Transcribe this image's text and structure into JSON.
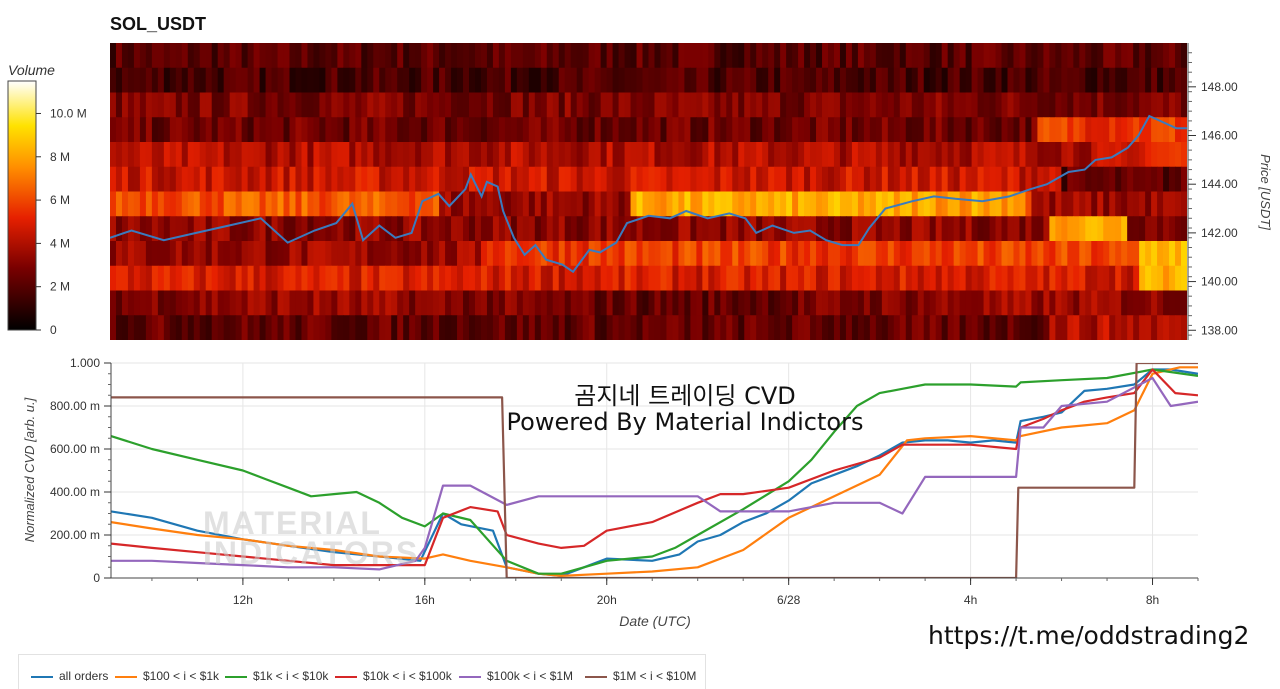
{
  "window_title": "SOL_USDT",
  "overlay": {
    "line1": "곰지네 트레이딩 CVD",
    "line2": "Powered By Material Indictors"
  },
  "link_text": "https://t.me/oddstrading2",
  "watermark": {
    "line1": "MATERIAL",
    "line2": "INDICATORS"
  },
  "colors": {
    "all_orders": "#1f77b4",
    "t100_1k": "#ff7f0e",
    "t1k_10k": "#2ca02c",
    "t10k_100k": "#d62728",
    "t100k_1m": "#9467bd",
    "t1m_10m": "#8c564b",
    "price_line": "#3a7bbf"
  },
  "chart_data": [
    {
      "type": "heatmap",
      "title": "SOL_USDT",
      "ylabel": "Price [USDT]",
      "colorbar_label": "Volume",
      "colorbar_ticks": [
        "0",
        "2 M",
        "4 M",
        "6 M",
        "8 M",
        "10.0 M"
      ],
      "colorbar_range": [
        0,
        11.5
      ],
      "y_ticks": [
        "138.00",
        "140.00",
        "142.00",
        "144.00",
        "146.00",
        "148.00"
      ],
      "ylim": [
        137.6,
        149.8
      ],
      "price_line": [
        [
          0,
          141.8
        ],
        [
          0.02,
          142.1
        ],
        [
          0.05,
          141.7
        ],
        [
          0.08,
          142.0
        ],
        [
          0.11,
          142.3
        ],
        [
          0.14,
          142.6
        ],
        [
          0.165,
          141.6
        ],
        [
          0.19,
          142.1
        ],
        [
          0.21,
          142.4
        ],
        [
          0.225,
          143.2
        ],
        [
          0.235,
          141.7
        ],
        [
          0.25,
          142.3
        ],
        [
          0.265,
          141.8
        ],
        [
          0.28,
          142.0
        ],
        [
          0.29,
          143.3
        ],
        [
          0.305,
          143.6
        ],
        [
          0.315,
          143.1
        ],
        [
          0.33,
          143.8
        ],
        [
          0.335,
          144.4
        ],
        [
          0.345,
          143.5
        ],
        [
          0.35,
          144.1
        ],
        [
          0.36,
          143.9
        ],
        [
          0.365,
          142.9
        ],
        [
          0.375,
          141.8
        ],
        [
          0.385,
          141.1
        ],
        [
          0.395,
          141.5
        ],
        [
          0.405,
          140.9
        ],
        [
          0.42,
          140.7
        ],
        [
          0.43,
          140.4
        ],
        [
          0.445,
          141.3
        ],
        [
          0.455,
          141.2
        ],
        [
          0.47,
          141.6
        ],
        [
          0.48,
          142.4
        ],
        [
          0.5,
          142.7
        ],
        [
          0.52,
          142.6
        ],
        [
          0.535,
          142.9
        ],
        [
          0.555,
          142.6
        ],
        [
          0.575,
          142.8
        ],
        [
          0.59,
          142.6
        ],
        [
          0.6,
          142.0
        ],
        [
          0.615,
          142.3
        ],
        [
          0.635,
          142.0
        ],
        [
          0.65,
          142.1
        ],
        [
          0.665,
          141.7
        ],
        [
          0.68,
          141.5
        ],
        [
          0.695,
          141.5
        ],
        [
          0.705,
          142.2
        ],
        [
          0.72,
          143.0
        ],
        [
          0.745,
          143.3
        ],
        [
          0.765,
          143.5
        ],
        [
          0.785,
          143.4
        ],
        [
          0.81,
          143.3
        ],
        [
          0.835,
          143.5
        ],
        [
          0.855,
          143.8
        ],
        [
          0.87,
          144.0
        ],
        [
          0.89,
          144.5
        ],
        [
          0.905,
          144.6
        ],
        [
          0.915,
          145.0
        ],
        [
          0.93,
          145.1
        ],
        [
          0.945,
          145.5
        ],
        [
          0.955,
          146.0
        ],
        [
          0.965,
          146.8
        ],
        [
          0.975,
          146.6
        ],
        [
          0.99,
          146.3
        ],
        [
          1.0,
          146.3
        ]
      ]
    },
    {
      "type": "line",
      "xlabel": "Date (UTC)",
      "ylabel": "Normalized CVD [arb. u.]",
      "ylim": [
        0,
        1
      ],
      "x_ticks": [
        "12h",
        "16h",
        "20h",
        "6/28",
        "4h",
        "8h"
      ],
      "x_tick_hours": [
        12,
        16,
        20,
        24,
        28,
        32
      ],
      "xlim_hours": [
        9.1,
        33.0
      ],
      "y_ticks": [
        "0",
        "200.00 m",
        "400.00 m",
        "600.00 m",
        "800.00 m",
        "1.000"
      ],
      "series": [
        {
          "name": "all orders",
          "color": "#1f77b4",
          "values": [
            [
              9.1,
              0.31
            ],
            [
              10,
              0.28
            ],
            [
              11,
              0.22
            ],
            [
              12,
              0.18
            ],
            [
              13,
              0.15
            ],
            [
              14,
              0.12
            ],
            [
              15,
              0.1
            ],
            [
              15.9,
              0.08
            ],
            [
              16.4,
              0.3
            ],
            [
              16.8,
              0.25
            ],
            [
              17.5,
              0.22
            ],
            [
              17.8,
              0.05
            ],
            [
              18.5,
              0.02
            ],
            [
              19,
              0.01
            ],
            [
              19.5,
              0.05
            ],
            [
              20,
              0.09
            ],
            [
              21,
              0.08
            ],
            [
              21.6,
              0.11
            ],
            [
              22,
              0.17
            ],
            [
              22.5,
              0.2
            ],
            [
              23,
              0.26
            ],
            [
              23.5,
              0.3
            ],
            [
              24,
              0.36
            ],
            [
              24.5,
              0.44
            ],
            [
              25,
              0.48
            ],
            [
              25.5,
              0.52
            ],
            [
              26,
              0.57
            ],
            [
              26.5,
              0.63
            ],
            [
              27,
              0.64
            ],
            [
              27.5,
              0.64
            ],
            [
              28,
              0.63
            ],
            [
              28.5,
              0.64
            ],
            [
              29,
              0.63
            ],
            [
              29.1,
              0.73
            ],
            [
              29.6,
              0.75
            ],
            [
              30,
              0.77
            ],
            [
              30.5,
              0.87
            ],
            [
              31,
              0.88
            ],
            [
              31.6,
              0.9
            ],
            [
              32,
              0.97
            ],
            [
              32.4,
              0.97
            ],
            [
              33,
              0.95
            ]
          ]
        },
        {
          "name": "$100 < i < $1k",
          "color": "#ff7f0e",
          "values": [
            [
              9.1,
              0.26
            ],
            [
              10,
              0.23
            ],
            [
              11,
              0.2
            ],
            [
              12,
              0.18
            ],
            [
              13,
              0.15
            ],
            [
              14,
              0.13
            ],
            [
              15,
              0.1
            ],
            [
              16,
              0.09
            ],
            [
              16.4,
              0.11
            ],
            [
              17,
              0.08
            ],
            [
              17.8,
              0.05
            ],
            [
              18.5,
              0.02
            ],
            [
              19,
              0.01
            ],
            [
              20,
              0.02
            ],
            [
              21,
              0.03
            ],
            [
              22,
              0.05
            ],
            [
              23,
              0.13
            ],
            [
              24,
              0.28
            ],
            [
              25,
              0.38
            ],
            [
              26,
              0.48
            ],
            [
              26.6,
              0.64
            ],
            [
              27,
              0.65
            ],
            [
              28,
              0.66
            ],
            [
              29,
              0.64
            ],
            [
              29.1,
              0.66
            ],
            [
              30,
              0.7
            ],
            [
              30.5,
              0.71
            ],
            [
              31,
              0.72
            ],
            [
              31.6,
              0.78
            ],
            [
              32,
              0.95
            ],
            [
              32.6,
              0.98
            ],
            [
              33,
              0.98
            ]
          ]
        },
        {
          "name": "$1k < i < $10k",
          "color": "#2ca02c",
          "values": [
            [
              9.1,
              0.66
            ],
            [
              10,
              0.6
            ],
            [
              11,
              0.55
            ],
            [
              12,
              0.5
            ],
            [
              12.5,
              0.46
            ],
            [
              13,
              0.42
            ],
            [
              13.5,
              0.38
            ],
            [
              14,
              0.39
            ],
            [
              14.5,
              0.4
            ],
            [
              15,
              0.35
            ],
            [
              15.5,
              0.28
            ],
            [
              16,
              0.24
            ],
            [
              16.4,
              0.3
            ],
            [
              17,
              0.27
            ],
            [
              17.8,
              0.08
            ],
            [
              18.5,
              0.02
            ],
            [
              19,
              0.02
            ],
            [
              19.5,
              0.05
            ],
            [
              20,
              0.08
            ],
            [
              21,
              0.1
            ],
            [
              21.5,
              0.14
            ],
            [
              22,
              0.2
            ],
            [
              23,
              0.32
            ],
            [
              24,
              0.45
            ],
            [
              24.5,
              0.55
            ],
            [
              25,
              0.68
            ],
            [
              25.5,
              0.8
            ],
            [
              26,
              0.86
            ],
            [
              26.5,
              0.88
            ],
            [
              27,
              0.9
            ],
            [
              28,
              0.9
            ],
            [
              29,
              0.89
            ],
            [
              29.1,
              0.91
            ],
            [
              30,
              0.92
            ],
            [
              31,
              0.93
            ],
            [
              32,
              0.97
            ],
            [
              33,
              0.94
            ]
          ]
        },
        {
          "name": "$10k < i < $100k",
          "color": "#d62728",
          "values": [
            [
              9.1,
              0.16
            ],
            [
              10,
              0.14
            ],
            [
              11,
              0.12
            ],
            [
              12,
              0.1
            ],
            [
              13,
              0.08
            ],
            [
              14,
              0.06
            ],
            [
              15,
              0.06
            ],
            [
              16,
              0.06
            ],
            [
              16.4,
              0.28
            ],
            [
              17,
              0.33
            ],
            [
              17.6,
              0.31
            ],
            [
              17.8,
              0.2
            ],
            [
              18.5,
              0.16
            ],
            [
              19,
              0.14
            ],
            [
              19.5,
              0.15
            ],
            [
              20,
              0.22
            ],
            [
              21,
              0.26
            ],
            [
              22,
              0.35
            ],
            [
              22.5,
              0.39
            ],
            [
              23,
              0.39
            ],
            [
              24,
              0.42
            ],
            [
              25,
              0.5
            ],
            [
              26,
              0.56
            ],
            [
              26.5,
              0.62
            ],
            [
              27,
              0.62
            ],
            [
              28,
              0.62
            ],
            [
              29,
              0.6
            ],
            [
              29.1,
              0.7
            ],
            [
              29.6,
              0.74
            ],
            [
              30,
              0.78
            ],
            [
              30.5,
              0.82
            ],
            [
              31,
              0.84
            ],
            [
              31.6,
              0.86
            ],
            [
              32,
              0.97
            ],
            [
              32.5,
              0.86
            ],
            [
              33,
              0.85
            ]
          ]
        },
        {
          "name": "$100k < i < $1M",
          "color": "#9467bd",
          "values": [
            [
              9.1,
              0.08
            ],
            [
              10,
              0.08
            ],
            [
              11,
              0.07
            ],
            [
              12,
              0.06
            ],
            [
              13,
              0.05
            ],
            [
              14,
              0.05
            ],
            [
              15,
              0.04
            ],
            [
              15.8,
              0.08
            ],
            [
              16.0,
              0.14
            ],
            [
              16.4,
              0.43
            ],
            [
              17,
              0.43
            ],
            [
              17.8,
              0.34
            ],
            [
              18.5,
              0.38
            ],
            [
              20,
              0.38
            ],
            [
              21,
              0.38
            ],
            [
              22,
              0.38
            ],
            [
              22.5,
              0.31
            ],
            [
              23,
              0.31
            ],
            [
              24,
              0.31
            ],
            [
              25,
              0.35
            ],
            [
              26,
              0.35
            ],
            [
              26.5,
              0.3
            ],
            [
              27,
              0.47
            ],
            [
              28,
              0.47
            ],
            [
              29,
              0.47
            ],
            [
              29.1,
              0.7
            ],
            [
              29.6,
              0.7
            ],
            [
              30,
              0.8
            ],
            [
              31,
              0.82
            ],
            [
              32,
              0.93
            ],
            [
              32.4,
              0.8
            ],
            [
              33,
              0.82
            ]
          ]
        },
        {
          "name": "$1M < i < $10M",
          "color": "#8c564b",
          "values": [
            [
              9.1,
              0.84
            ],
            [
              17.7,
              0.84
            ],
            [
              17.8,
              0.0
            ],
            [
              29.0,
              0.0
            ],
            [
              29.05,
              0.42
            ],
            [
              31.6,
              0.42
            ],
            [
              31.65,
              1.0
            ],
            [
              33,
              1.0
            ]
          ]
        }
      ]
    }
  ],
  "legend": [
    {
      "name": "all orders",
      "color": "#1f77b4"
    },
    {
      "name": "$100 < i < $1k",
      "color": "#ff7f0e"
    },
    {
      "name": "$1k < i < $10k",
      "color": "#2ca02c"
    },
    {
      "name": "$10k < i < $100k",
      "color": "#d62728"
    },
    {
      "name": "$100k < i < $1M",
      "color": "#9467bd"
    },
    {
      "name": "$1M < i < $10M",
      "color": "#8c564b"
    }
  ]
}
